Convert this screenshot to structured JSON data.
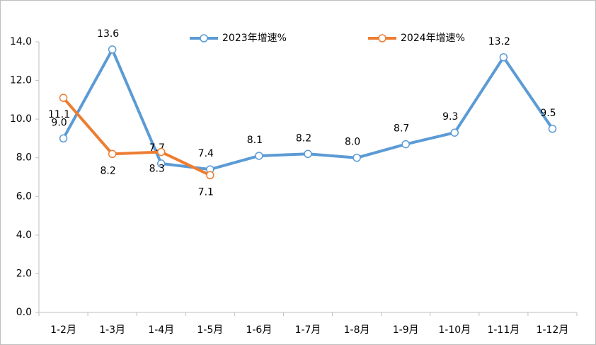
{
  "chart_data": {
    "type": "line",
    "categories": [
      "1-2月",
      "1-3月",
      "1-4月",
      "1-5月",
      "1-6月",
      "1-7月",
      "1-8月",
      "1-9月",
      "1-10月",
      "1-11月",
      "1-12月"
    ],
    "series": [
      {
        "name": "2023年增速%",
        "color": "#5b9bd5",
        "values": [
          9.0,
          13.6,
          7.7,
          7.4,
          8.1,
          8.2,
          8.0,
          8.7,
          9.3,
          13.2,
          9.5
        ],
        "value_labels": [
          "9.0",
          "13.6",
          "7.7",
          "7.4",
          "8.1",
          "8.2",
          "8.0",
          "8.7",
          "9.3",
          "13.2",
          "9.5"
        ]
      },
      {
        "name": "2024年增速%",
        "color": "#ed7d31",
        "values": [
          11.1,
          8.2,
          8.3,
          7.1,
          null,
          null,
          null,
          null,
          null,
          null,
          null
        ],
        "value_labels": [
          "11.1",
          "8.2",
          "8.3",
          "7.1",
          null,
          null,
          null,
          null,
          null,
          null,
          null
        ]
      }
    ],
    "ylim": [
      0,
      14
    ],
    "yticks": [
      {
        "value": 0,
        "label": "0.0"
      },
      {
        "value": 2,
        "label": "2.0"
      },
      {
        "value": 4,
        "label": "4.0"
      },
      {
        "value": 6,
        "label": "6.0"
      },
      {
        "value": 8,
        "label": "8.0"
      },
      {
        "value": 10,
        "label": "10.0"
      },
      {
        "value": 12,
        "label": "12.0"
      },
      {
        "value": 14,
        "label": "14.0"
      }
    ],
    "grid": false,
    "legend": "top"
  }
}
